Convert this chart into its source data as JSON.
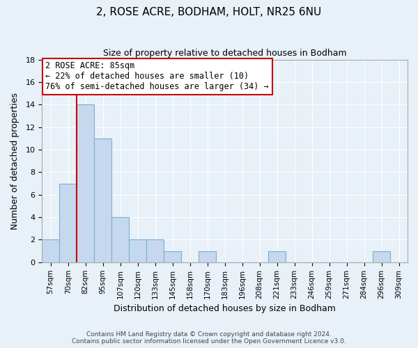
{
  "title": "2, ROSE ACRE, BODHAM, HOLT, NR25 6NU",
  "subtitle": "Size of property relative to detached houses in Bodham",
  "xlabel": "Distribution of detached houses by size in Bodham",
  "ylabel": "Number of detached properties",
  "bin_labels": [
    "57sqm",
    "70sqm",
    "82sqm",
    "95sqm",
    "107sqm",
    "120sqm",
    "133sqm",
    "145sqm",
    "158sqm",
    "170sqm",
    "183sqm",
    "196sqm",
    "208sqm",
    "221sqm",
    "233sqm",
    "246sqm",
    "259sqm",
    "271sqm",
    "284sqm",
    "296sqm",
    "309sqm"
  ],
  "counts": [
    2,
    7,
    14,
    11,
    4,
    2,
    2,
    1,
    0,
    1,
    0,
    0,
    0,
    1,
    0,
    0,
    0,
    0,
    0,
    1,
    0
  ],
  "bar_color": "#c5d8ed",
  "bar_edge_color": "#7bafd4",
  "marker_bin": 2,
  "marker_line_color": "#cc0000",
  "annotation_title": "2 ROSE ACRE: 85sqm",
  "annotation_line1": "← 22% of detached houses are smaller (10)",
  "annotation_line2": "76% of semi-detached houses are larger (34) →",
  "annotation_box_color": "#ffffff",
  "annotation_box_edge": "#cc0000",
  "ylim": [
    0,
    18
  ],
  "yticks": [
    0,
    2,
    4,
    6,
    8,
    10,
    12,
    14,
    16,
    18
  ],
  "footer1": "Contains HM Land Registry data © Crown copyright and database right 2024.",
  "footer2": "Contains public sector information licensed under the Open Government Licence v3.0.",
  "background_color": "#e8f0f8",
  "plot_background": "#e8f0f8",
  "title_fontsize": 11,
  "subtitle_fontsize": 9,
  "xlabel_fontsize": 9,
  "ylabel_fontsize": 9,
  "tick_fontsize": 8,
  "xtick_fontsize": 7.5,
  "footer_fontsize": 6.5
}
